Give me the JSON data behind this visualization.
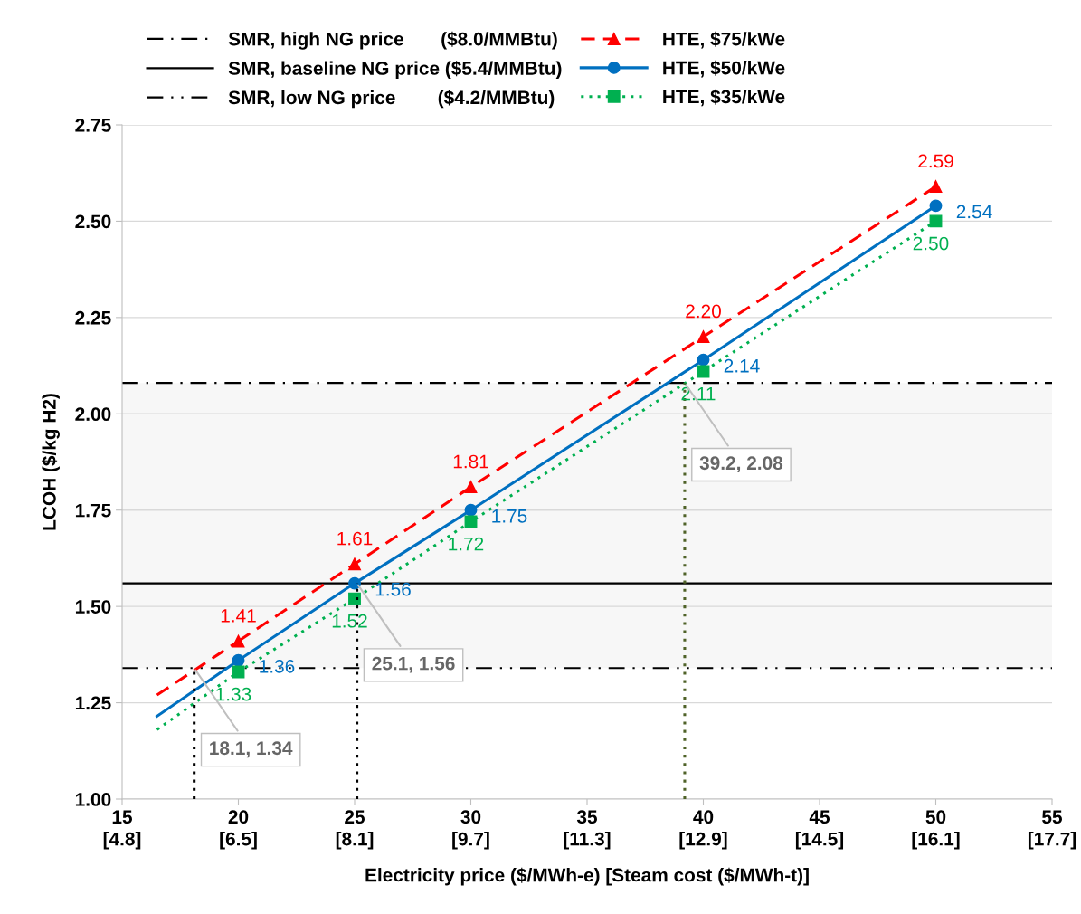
{
  "chart_data": {
    "type": "line",
    "xlabel": "Electricity price ($/MWh-e) [Steam cost ($/MWh-t)]",
    "ylabel": "LCOH ($/kg H2)",
    "x": [
      20,
      25,
      30,
      40,
      50
    ],
    "series": [
      {
        "name": "HTE, $75/kWe",
        "color": "#ff0000",
        "values": [
          1.41,
          1.61,
          1.81,
          2.2,
          2.59
        ],
        "value_labels": [
          "1.41",
          "1.61",
          "1.81",
          "2.20",
          "2.59"
        ],
        "marker": "triangle",
        "line_style": "dashed"
      },
      {
        "name": "HTE, $50/kWe",
        "color": "#0070c0",
        "values": [
          1.36,
          1.56,
          1.75,
          2.14,
          2.54
        ],
        "value_labels": [
          "1.36",
          "1.56",
          "1.75",
          "2.14",
          "2.54"
        ],
        "marker": "circle",
        "line_style": "solid"
      },
      {
        "name": "HTE, $35/kWe",
        "color": "#00b050",
        "values": [
          1.33,
          1.52,
          1.72,
          2.11,
          2.5
        ],
        "value_labels": [
          "1.33",
          "1.52",
          "1.72",
          "2.11",
          "2.50"
        ],
        "marker": "square",
        "line_style": "dotted"
      },
      {
        "color": "#ff0000",
        "x": [
          16.5,
          20
        ],
        "values": [
          1.27,
          1.41
        ],
        "marker": "none",
        "line_style": "dashed"
      },
      {
        "color": "#0070c0",
        "x": [
          16.5,
          20
        ],
        "values": [
          1.215,
          1.36
        ],
        "marker": "none",
        "line_style": "solid"
      },
      {
        "color": "#00b050",
        "x": [
          16.5,
          20
        ],
        "values": [
          1.18,
          1.33
        ],
        "marker": "none",
        "line_style": "dotted"
      },
      {
        "color": "#000000",
        "x": [
          18.1,
          18.1
        ],
        "values": [
          1.0,
          1.34
        ],
        "marker": "none",
        "line_style": "dotted"
      },
      {
        "color": "#000000",
        "x": [
          25.1,
          25.1
        ],
        "values": [
          1.0,
          1.56
        ],
        "marker": "none",
        "line_style": "dotted"
      },
      {
        "color": "#4f6228",
        "x": [
          39.2,
          39.2
        ],
        "values": [
          1.0,
          2.08
        ],
        "marker": "none",
        "line_style": "dotted"
      }
    ],
    "ref_lines": [
      {
        "axis": "y",
        "value": 2.08,
        "label": "SMR, high NG price       ($8.0/MMBtu)",
        "color": "#000000",
        "line_style": "dashdot"
      },
      {
        "axis": "y",
        "value": 1.56,
        "label": "SMR, baseline NG price ($5.4/MMBtu)",
        "color": "#000000",
        "line_style": "solid"
      },
      {
        "axis": "y",
        "value": 1.34,
        "label": "SMR, low NG price        ($4.2/MMBtu)",
        "color": "#000000",
        "line_style": "dashdotdot"
      }
    ],
    "bands": [
      {
        "axis": "y",
        "from": 1.34,
        "to": 2.08,
        "color": "#f7f7f7"
      }
    ],
    "annotations": [
      {
        "text": "18.1, 1.34",
        "x": 18.1,
        "y": 1.34
      },
      {
        "text": "25.1, 1.56",
        "x": 25.1,
        "y": 1.56
      },
      {
        "text": "39.2, 2.08",
        "x": 39.2,
        "y": 2.08
      }
    ],
    "xlim": [
      15,
      55
    ],
    "xticks": [
      15,
      20,
      25,
      30,
      35,
      40,
      45,
      50,
      55
    ],
    "x2lim": [
      4.839,
      17.742
    ],
    "x2ticks": [
      {
        "value": 4.839,
        "label": "[4.8]"
      },
      {
        "value": 6.452,
        "label": "[6.5]"
      },
      {
        "value": 8.065,
        "label": "[8.1]"
      },
      {
        "value": 9.677,
        "label": "[9.7]"
      },
      {
        "value": 11.29,
        "label": "[11.3]"
      },
      {
        "value": 12.903,
        "label": "[12.9]"
      },
      {
        "value": 14.516,
        "label": "[14.5]"
      },
      {
        "value": 16.129,
        "label": "[16.1]"
      },
      {
        "value": 17.742,
        "label": "[17.7]"
      }
    ],
    "ylim": [
      1.0,
      2.75
    ],
    "yticks": [
      {
        "value": 1.0,
        "label": "1.00"
      },
      {
        "value": 1.25,
        "label": "1.25"
      },
      {
        "value": 1.5,
        "label": "1.50"
      },
      {
        "value": 1.75,
        "label": "1.75"
      },
      {
        "value": 2.0,
        "label": "2.00"
      },
      {
        "value": 2.25,
        "label": "2.25"
      },
      {
        "value": 2.5,
        "label": "2.50"
      },
      {
        "value": 2.75,
        "label": "2.75"
      }
    ],
    "grid": "y",
    "legend": "top"
  }
}
